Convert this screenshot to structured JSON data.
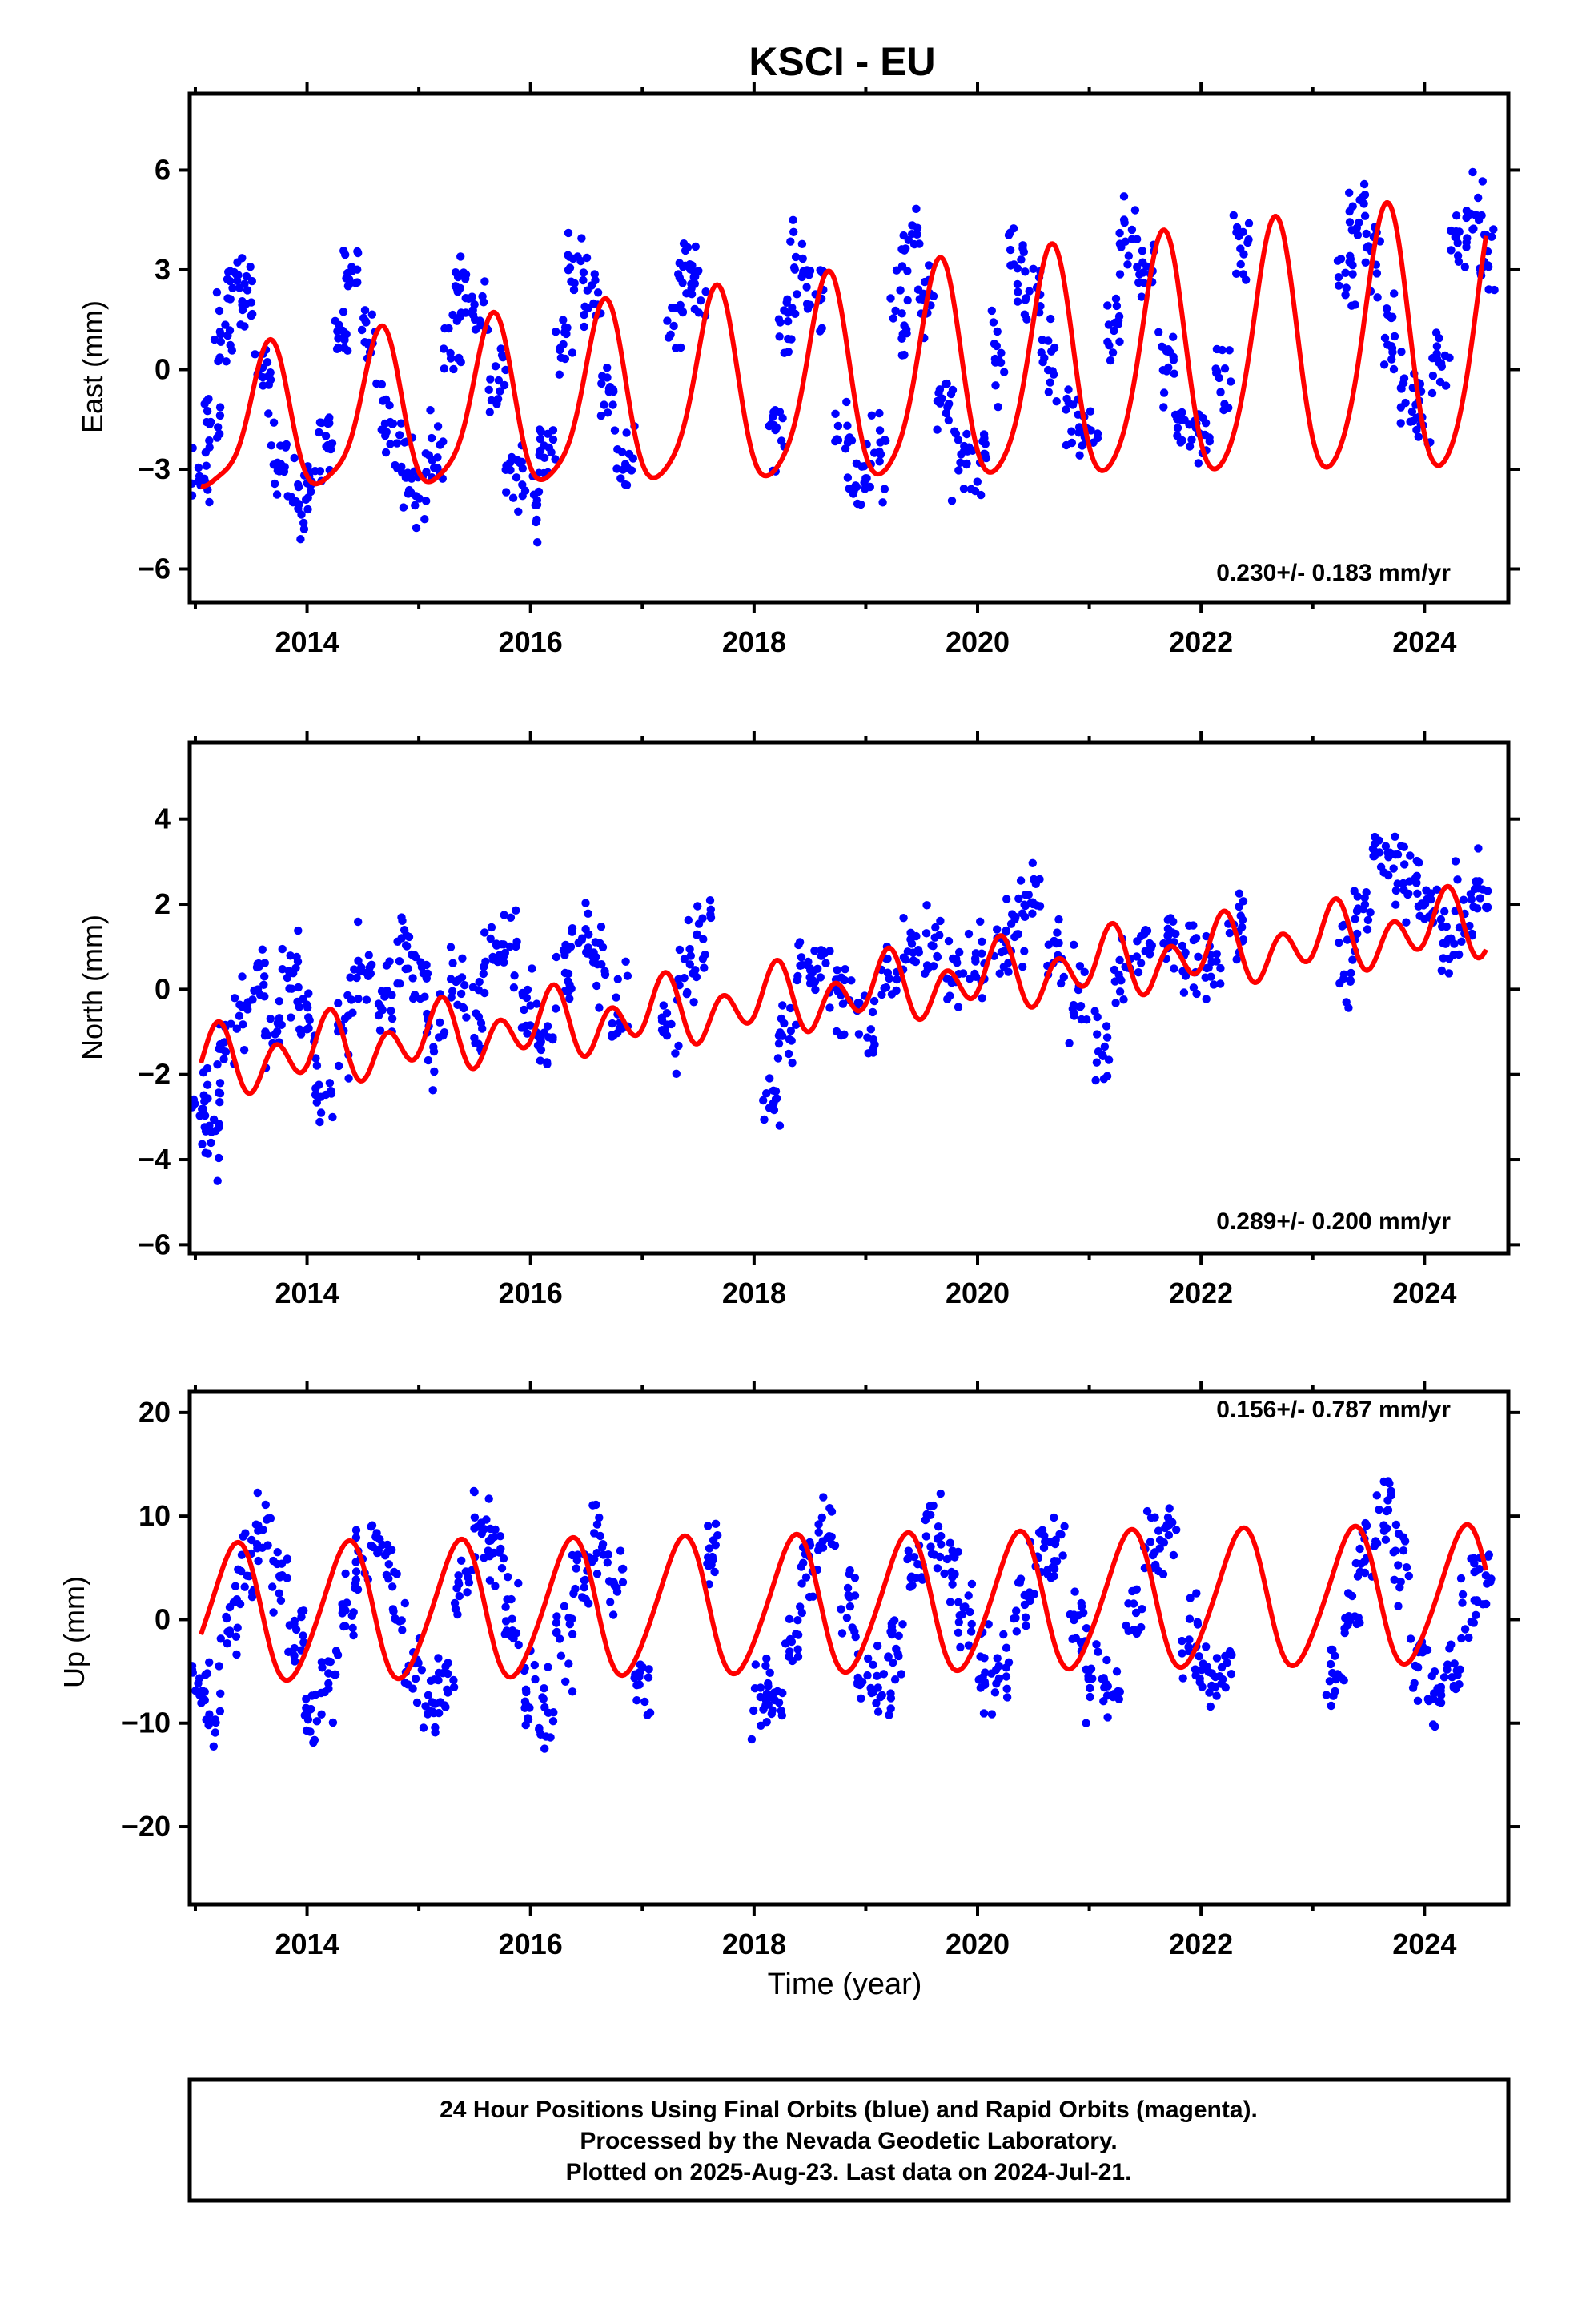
{
  "title": "KSCI - EU",
  "xlabel": "Time (year)",
  "footer": {
    "line1": "24 Hour Positions Using Final Orbits (blue) and Rapid Orbits (magenta).",
    "line2": "Processed by the Nevada Geodetic Laboratory.",
    "line3": "Plotted on 2025-Aug-23. Last data on 2024-Jul-21."
  },
  "colors": {
    "data": "#0000ff",
    "model": "#ff0000",
    "frame": "#000000"
  },
  "chart_data": [
    {
      "type": "scatter",
      "ylabel": "East (mm)",
      "rate_text": "0.230+/- 0.183 mm/yr",
      "xlim": [
        2012.95,
        2024.75
      ],
      "ylim": [
        -7,
        8.3
      ],
      "yticks": [
        -6,
        -3,
        0,
        3,
        6
      ],
      "xticks": [
        2014,
        2016,
        2018,
        2020,
        2022,
        2024
      ],
      "model": {
        "offset": -0.5,
        "slope": 0.23,
        "ref_year": 2018.8,
        "annual_cos": -1.75,
        "annual_sin": -2.5,
        "semiannual_cos": -0.35,
        "semiannual_sin": 0.35,
        "amp_growth": 0.06
      },
      "series": [
        {
          "values": [
            [
              2013.05,
              -3.3
            ],
            [
              2013.15,
              -1.5
            ],
            [
              2013.25,
              1.0
            ],
            [
              2013.35,
              2.8
            ],
            [
              2013.45,
              2.0
            ],
            [
              2013.6,
              -0.2
            ],
            [
              2013.75,
              -2.6
            ],
            [
              2013.9,
              -3.9
            ],
            [
              2014.05,
              -3.4
            ],
            [
              2014.15,
              -1.7
            ],
            [
              2014.3,
              1.2
            ],
            [
              2014.4,
              2.6
            ],
            [
              2014.55,
              1.2
            ],
            [
              2014.7,
              -1.4
            ],
            [
              2014.85,
              -3.1
            ],
            [
              2015.0,
              -3.6
            ],
            [
              2015.15,
              -2.4
            ],
            [
              2015.3,
              0.6
            ],
            [
              2015.4,
              2.4
            ],
            [
              2015.55,
              1.7
            ],
            [
              2015.7,
              -0.6
            ],
            [
              2015.85,
              -2.9
            ],
            [
              2016.0,
              -3.9
            ],
            [
              2016.15,
              -2.2
            ],
            [
              2016.3,
              0.8
            ],
            [
              2016.4,
              2.9
            ],
            [
              2016.55,
              1.9
            ],
            [
              2016.7,
              -0.9
            ],
            [
              2016.85,
              -2.7
            ],
            [
              2017.3,
              1.5
            ],
            [
              2017.4,
              3.2
            ],
            [
              2017.5,
              2.4
            ],
            [
              2018.2,
              -1.7
            ],
            [
              2018.3,
              1.4
            ],
            [
              2018.4,
              3.4
            ],
            [
              2018.55,
              2.1
            ],
            [
              2018.8,
              -2.4
            ],
            [
              2018.95,
              -3.1
            ],
            [
              2019.1,
              -2.6
            ],
            [
              2019.3,
              1.7
            ],
            [
              2019.4,
              3.7
            ],
            [
              2019.55,
              2.2
            ],
            [
              2019.7,
              -0.9
            ],
            [
              2019.85,
              -2.6
            ],
            [
              2020.0,
              -2.7
            ],
            [
              2020.2,
              0.2
            ],
            [
              2020.35,
              3.3
            ],
            [
              2020.5,
              2.5
            ],
            [
              2020.65,
              0.2
            ],
            [
              2020.85,
              -1.6
            ],
            [
              2021.0,
              -2.0
            ],
            [
              2021.2,
              0.9
            ],
            [
              2021.35,
              3.9
            ],
            [
              2021.5,
              3.1
            ],
            [
              2021.7,
              0.2
            ],
            [
              2021.85,
              -1.9
            ],
            [
              2022.0,
              -2.2
            ],
            [
              2022.2,
              -0.3
            ],
            [
              2022.35,
              3.9
            ],
            [
              2023.3,
              3.1
            ],
            [
              2023.4,
              4.9
            ],
            [
              2023.55,
              3.5
            ],
            [
              2023.7,
              0.9
            ],
            [
              2023.85,
              -0.9
            ],
            [
              2024.0,
              -1.3
            ],
            [
              2024.15,
              0.3
            ],
            [
              2024.3,
              3.8
            ],
            [
              2024.45,
              4.8
            ],
            [
              2024.55,
              3.2
            ]
          ]
        }
      ]
    },
    {
      "type": "scatter",
      "ylabel": "North (mm)",
      "rate_text": "0.289+/- 0.200 mm/yr",
      "xlim": [
        2012.95,
        2024.75
      ],
      "ylim": [
        -6.2,
        5.8
      ],
      "yticks": [
        -6,
        -4,
        -2,
        0,
        2,
        4
      ],
      "xticks": [
        2014,
        2016,
        2018,
        2020,
        2022,
        2024
      ],
      "model": {
        "offset": -0.1,
        "slope": 0.289,
        "ref_year": 2018.8,
        "annual_cos": 0.25,
        "annual_sin": 0.3,
        "semiannual_cos": -0.55,
        "semiannual_sin": 0.25,
        "amp_growth": 0.0
      },
      "series": [
        {
          "values": [
            [
              2013.05,
              -2.4
            ],
            [
              2013.15,
              -3.4
            ],
            [
              2013.25,
              -1.5
            ],
            [
              2013.4,
              -0.5
            ],
            [
              2013.55,
              0.3
            ],
            [
              2013.7,
              -0.9
            ],
            [
              2013.85,
              0.6
            ],
            [
              2014.0,
              -0.8
            ],
            [
              2014.15,
              -2.5
            ],
            [
              2014.35,
              -0.6
            ],
            [
              2014.5,
              0.4
            ],
            [
              2014.7,
              -0.2
            ],
            [
              2014.85,
              0.9
            ],
            [
              2015.0,
              0.4
            ],
            [
              2015.15,
              -1.2
            ],
            [
              2015.35,
              0.3
            ],
            [
              2015.5,
              -0.7
            ],
            [
              2015.65,
              0.6
            ],
            [
              2015.8,
              0.9
            ],
            [
              2016.0,
              -0.4
            ],
            [
              2016.15,
              -1.3
            ],
            [
              2016.3,
              0.5
            ],
            [
              2016.45,
              1.1
            ],
            [
              2016.6,
              0.8
            ],
            [
              2016.8,
              -0.6
            ],
            [
              2017.25,
              -1.1
            ],
            [
              2017.4,
              0.6
            ],
            [
              2017.55,
              1.4
            ],
            [
              2018.15,
              -2.6
            ],
            [
              2018.3,
              -0.9
            ],
            [
              2018.45,
              0.3
            ],
            [
              2018.6,
              0.4
            ],
            [
              2018.8,
              -0.2
            ],
            [
              2019.0,
              -0.9
            ],
            [
              2019.2,
              0.2
            ],
            [
              2019.4,
              1.2
            ],
            [
              2019.6,
              0.9
            ],
            [
              2019.8,
              0.3
            ],
            [
              2020.0,
              0.6
            ],
            [
              2020.2,
              0.9
            ],
            [
              2020.35,
              1.4
            ],
            [
              2020.5,
              2.0
            ],
            [
              2020.7,
              1.0
            ],
            [
              2020.9,
              -0.2
            ],
            [
              2021.1,
              -1.2
            ],
            [
              2021.3,
              0.2
            ],
            [
              2021.5,
              0.9
            ],
            [
              2021.7,
              1.1
            ],
            [
              2021.9,
              0.9
            ],
            [
              2022.1,
              0.5
            ],
            [
              2022.3,
              1.4
            ],
            [
              2023.3,
              0.6
            ],
            [
              2023.45,
              1.7
            ],
            [
              2023.6,
              3.1
            ],
            [
              2023.75,
              2.9
            ],
            [
              2023.9,
              2.3
            ],
            [
              2024.05,
              1.9
            ],
            [
              2024.2,
              1.1
            ],
            [
              2024.35,
              1.6
            ],
            [
              2024.5,
              2.3
            ]
          ]
        }
      ]
    },
    {
      "type": "scatter",
      "ylabel": "Up (mm)",
      "rate_text": "0.156+/- 0.787 mm/yr",
      "xlim": [
        2012.95,
        2024.75
      ],
      "ylim": [
        -27.5,
        22
      ],
      "yticks": [
        -20,
        -10,
        0,
        10,
        20
      ],
      "xticks": [
        2014,
        2016,
        2018,
        2020,
        2022,
        2024
      ],
      "model": {
        "offset": 1.4,
        "slope": 0.156,
        "ref_year": 2018.8,
        "annual_cos": -4.0,
        "annual_sin": 5.2,
        "semiannual_cos": 0.6,
        "semiannual_sin": -0.4,
        "amp_growth": 0.0
      },
      "series": [
        {
          "values": [
            [
              2013.05,
              -6.0
            ],
            [
              2013.15,
              -9.5
            ],
            [
              2013.3,
              -1.0
            ],
            [
              2013.45,
              4.5
            ],
            [
              2013.6,
              8.5
            ],
            [
              2013.75,
              4.0
            ],
            [
              2013.9,
              -2.0
            ],
            [
              2014.05,
              -9.0
            ],
            [
              2014.2,
              -6.5
            ],
            [
              2014.35,
              1.5
            ],
            [
              2014.5,
              6.5
            ],
            [
              2014.65,
              8.0
            ],
            [
              2014.8,
              2.5
            ],
            [
              2014.95,
              -4.0
            ],
            [
              2015.1,
              -9.5
            ],
            [
              2015.25,
              -6.0
            ],
            [
              2015.4,
              2.5
            ],
            [
              2015.55,
              8.5
            ],
            [
              2015.7,
              7.0
            ],
            [
              2015.85,
              1.0
            ],
            [
              2016.0,
              -6.0
            ],
            [
              2016.15,
              -9.0
            ],
            [
              2016.3,
              -2.5
            ],
            [
              2016.45,
              4.5
            ],
            [
              2016.6,
              7.0
            ],
            [
              2016.75,
              3.5
            ],
            [
              2017.0,
              -6.0
            ],
            [
              2017.6,
              6.0
            ],
            [
              2018.05,
              -7.5
            ],
            [
              2018.2,
              -8.0
            ],
            [
              2018.35,
              -1.0
            ],
            [
              2018.5,
              5.0
            ],
            [
              2018.65,
              7.5
            ],
            [
              2018.85,
              1.5
            ],
            [
              2019.0,
              -4.5
            ],
            [
              2019.15,
              -6.5
            ],
            [
              2019.3,
              -1.5
            ],
            [
              2019.45,
              4.5
            ],
            [
              2019.6,
              8.0
            ],
            [
              2019.75,
              5.0
            ],
            [
              2019.9,
              0.5
            ],
            [
              2020.05,
              -5.0
            ],
            [
              2020.2,
              -5.5
            ],
            [
              2020.4,
              2.0
            ],
            [
              2020.55,
              6.0
            ],
            [
              2020.7,
              6.5
            ],
            [
              2020.9,
              0.0
            ],
            [
              2021.05,
              -5.0
            ],
            [
              2021.2,
              -6.5
            ],
            [
              2021.4,
              1.0
            ],
            [
              2021.55,
              6.5
            ],
            [
              2021.7,
              8.0
            ],
            [
              2021.9,
              -1.0
            ],
            [
              2022.05,
              -6.0
            ],
            [
              2022.2,
              -5.5
            ],
            [
              2023.2,
              -6.0
            ],
            [
              2023.35,
              0.5
            ],
            [
              2023.5,
              7.0
            ],
            [
              2023.65,
              10.5
            ],
            [
              2023.8,
              5.0
            ],
            [
              2023.95,
              -3.0
            ],
            [
              2024.1,
              -8.0
            ],
            [
              2024.25,
              -5.0
            ],
            [
              2024.4,
              1.5
            ],
            [
              2024.52,
              5.0
            ]
          ]
        }
      ]
    }
  ]
}
